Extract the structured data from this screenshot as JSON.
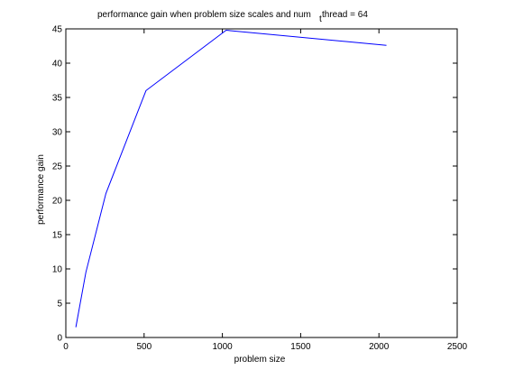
{
  "chart_data": {
    "type": "line",
    "title": "performance gain when problem size scales and num",
    "title_fragment": "thread = 64",
    "xlabel": "problem size",
    "ylabel": "performance gain",
    "xlim": [
      0,
      2500
    ],
    "ylim": [
      0,
      45
    ],
    "xticks": [
      0,
      500,
      1000,
      1500,
      2000,
      2500
    ],
    "yticks": [
      0,
      5,
      10,
      15,
      20,
      25,
      30,
      35,
      40,
      45
    ],
    "grid": false,
    "series": [
      {
        "color": "#0000ff",
        "x": [
          64,
          128,
          256,
          512,
          1024,
          2048
        ],
        "y": [
          1.5,
          9.5,
          21.0,
          36.0,
          44.8,
          42.6
        ]
      }
    ]
  }
}
